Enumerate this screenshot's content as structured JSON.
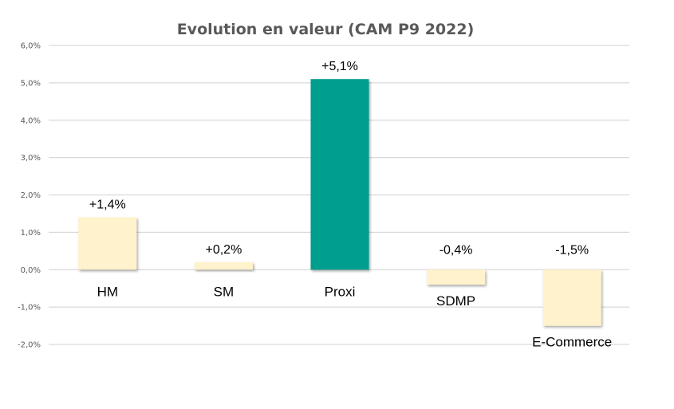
{
  "chart_data": {
    "type": "bar",
    "title": "Evolution en valeur (CAM P9 2022)",
    "xlabel": "",
    "ylabel": "",
    "ylim": [
      -2.0,
      6.0
    ],
    "yticks": [
      6.0,
      5.0,
      4.0,
      3.0,
      2.0,
      1.0,
      0.0,
      -1.0,
      -2.0
    ],
    "ytick_labels": [
      "6,0%",
      "5,0%",
      "4,0%",
      "3,0%",
      "2,0%",
      "1,0%",
      "0,0%",
      "-1,0%",
      "-2,0%"
    ],
    "grid": true,
    "legend": "none",
    "categories": [
      "HM",
      "SM",
      "Proxi",
      "SDMP",
      "E-Commerce"
    ],
    "values": [
      1.4,
      0.2,
      5.1,
      -0.4,
      -1.5
    ],
    "data_labels": [
      "+1,4%",
      "+0,2%",
      "+5,1%",
      "-0,4%",
      "-1,5%"
    ],
    "colors": [
      "#fff2cc",
      "#fff2cc",
      "#009e8e",
      "#fff2cc",
      "#fff2cc"
    ]
  }
}
